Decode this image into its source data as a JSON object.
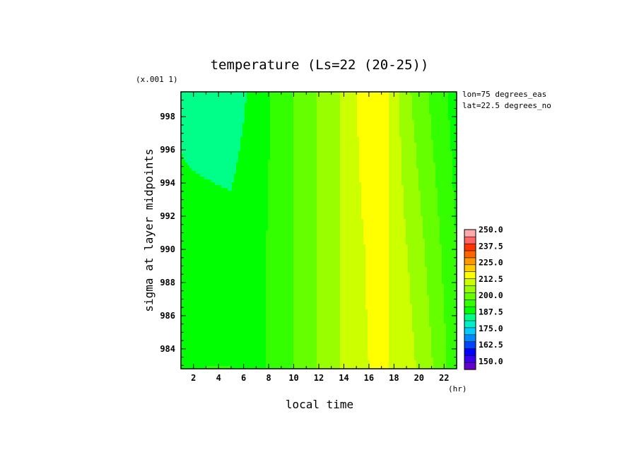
{
  "chart_data": {
    "type": "heatmap",
    "title": "temperature (Ls=22 (20-25))",
    "xlabel": "local time",
    "x_unit": "(hr)",
    "ylabel": "sigma at layer midpoints",
    "y_multiplier": "(x.001 1)",
    "annotations": [
      "lon=75 degrees_eas",
      "lat=22.5 degrees_no"
    ],
    "x_ticks": [
      2,
      4,
      6,
      8,
      10,
      12,
      14,
      16,
      18,
      20,
      22
    ],
    "y_ticks": [
      984,
      986,
      988,
      990,
      992,
      994,
      996,
      998
    ],
    "xlim": [
      1,
      23
    ],
    "ylim": [
      999.5,
      982.8
    ],
    "x": [
      1,
      3,
      5,
      7,
      9,
      11,
      13,
      15,
      17,
      19,
      21,
      23
    ],
    "y": [
      983,
      990,
      999.5
    ],
    "z": [
      [
        199,
        200,
        200,
        198,
        203,
        210,
        216,
        224,
        226,
        222,
        213,
        202
      ],
      [
        195,
        196,
        196,
        198,
        203,
        210,
        216,
        224,
        227,
        219,
        210,
        200
      ],
      [
        193,
        191,
        190,
        196,
        203,
        210,
        216,
        225,
        230,
        214,
        205,
        197
      ]
    ],
    "colorbar": {
      "min": 143.75,
      "max": 250,
      "step": 6.25,
      "labels": [
        "250.0",
        "237.5",
        "225.0",
        "212.5",
        "200.0",
        "187.5",
        "175.0",
        "162.5",
        "150.0"
      ],
      "colors": [
        "#6600cc",
        "#3a00ee",
        "#0000ff",
        "#0044ff",
        "#0088ff",
        "#00ccff",
        "#00eecc",
        "#00ff88",
        "#00ff00",
        "#33ff00",
        "#66ff00",
        "#99ff00",
        "#ccff00",
        "#ffff00",
        "#ffcc00",
        "#ff9900",
        "#ff6600",
        "#ff3300",
        "#ff6666",
        "#ffaaaa"
      ]
    }
  }
}
